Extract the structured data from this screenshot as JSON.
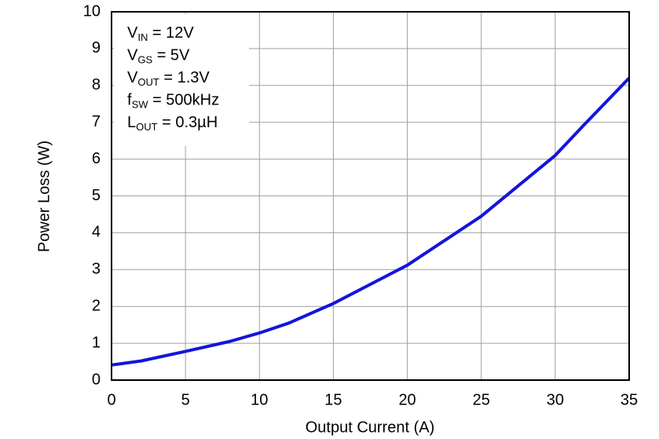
{
  "chart_data": {
    "type": "line",
    "xlabel": "Output Current (A)",
    "ylabel": "Power Loss (W)",
    "x": [
      0,
      2,
      5,
      8,
      10,
      12,
      15,
      20,
      25,
      30,
      32,
      35
    ],
    "series": [
      {
        "name": "Power Loss",
        "color": "#1414dc",
        "values": [
          0.41,
          0.52,
          0.78,
          1.05,
          1.28,
          1.55,
          2.08,
          3.12,
          4.45,
          6.1,
          6.95,
          8.2
        ]
      }
    ],
    "xlim": [
      0,
      35
    ],
    "xticks": [
      0,
      5,
      10,
      15,
      20,
      25,
      30,
      35
    ],
    "ylim": [
      0,
      10
    ],
    "yticks": [
      0,
      1,
      2,
      3,
      4,
      5,
      6,
      7,
      8,
      9,
      10
    ],
    "grid": true,
    "annotations": [
      {
        "symbol": "V",
        "subscript": "IN",
        "text": " = 12V"
      },
      {
        "symbol": "V",
        "subscript": "GS",
        "text": " = 5V"
      },
      {
        "symbol": "V",
        "subscript": "OUT",
        "text": " = 1.3V"
      },
      {
        "symbol": "f",
        "subscript": "SW",
        "text": " = 500kHz"
      },
      {
        "symbol": "L",
        "subscript": "OUT",
        "text": " = 0.3µH"
      }
    ]
  }
}
